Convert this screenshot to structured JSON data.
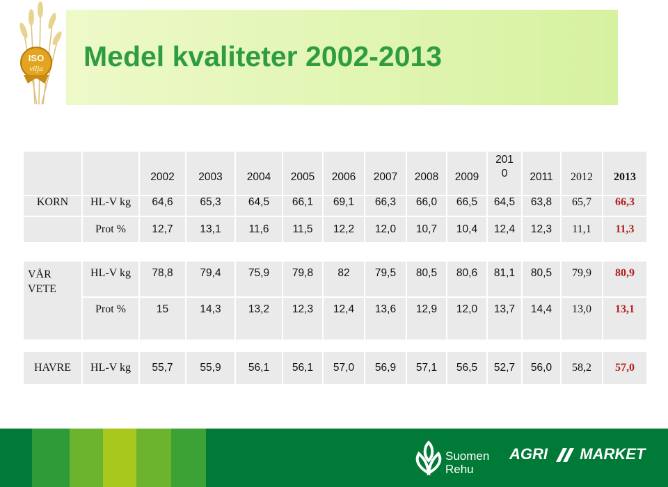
{
  "title": "Medel kvaliteter 2002-2013",
  "logo": {
    "line1": "ISO",
    "line2": "vilja"
  },
  "years": [
    "2002",
    "2003",
    "2004",
    "2005",
    "2006",
    "2007",
    "2008",
    "2009",
    "2010",
    "2011",
    "2012",
    "2013"
  ],
  "year_2010_display": {
    "line1": "201",
    "line2": "0"
  },
  "korn": {
    "crop": "KORN",
    "rows": [
      {
        "label": "HL-V kg",
        "values": [
          "64,6",
          "65,3",
          "64,5",
          "66,1",
          "69,1",
          "66,3",
          "66,0",
          "66,5",
          "64,5",
          "63,8",
          "65,7",
          "66,3"
        ]
      },
      {
        "label": "Prot %",
        "values": [
          "12,7",
          "13,1",
          "11,6",
          "11,5",
          "12,2",
          "12,0",
          "10,7",
          "10,4",
          "12,4",
          "12,3",
          "11,1",
          "11,3"
        ]
      }
    ]
  },
  "vete": {
    "crop_line1": "VÅR",
    "crop_line2": "VETE",
    "rows": [
      {
        "label": "HL-V kg",
        "values": [
          "78,8",
          "79,4",
          "75,9",
          "79,8",
          "82",
          "79,5",
          "80,5",
          "80,6",
          "81,1",
          "80,5",
          "79,9",
          "80,9"
        ]
      },
      {
        "label": "Prot %",
        "values": [
          "15",
          "14,3",
          "13,2",
          "12,3",
          "12,4",
          "13,6",
          "12,9",
          "12,0",
          "13,7",
          "14,4",
          "13,0",
          "13,1"
        ]
      }
    ]
  },
  "havre": {
    "crop": "HAVRE",
    "rows": [
      {
        "label": "HL-V kg",
        "values": [
          "55,7",
          "55,9",
          "56,1",
          "56,1",
          "57,0",
          "56,9",
          "57,1",
          "56,5",
          "52,7",
          "56,0",
          "58,2",
          "57,0"
        ]
      }
    ]
  },
  "footer": {
    "suomen_line1": "Suomen",
    "suomen_line2": "Rehu",
    "agri_left": "AGRI",
    "agri_right": "MARKET"
  },
  "colors": {
    "title": "#2e9d3f",
    "highlight_2013": "#b02020",
    "footer_green": "#007a36"
  }
}
